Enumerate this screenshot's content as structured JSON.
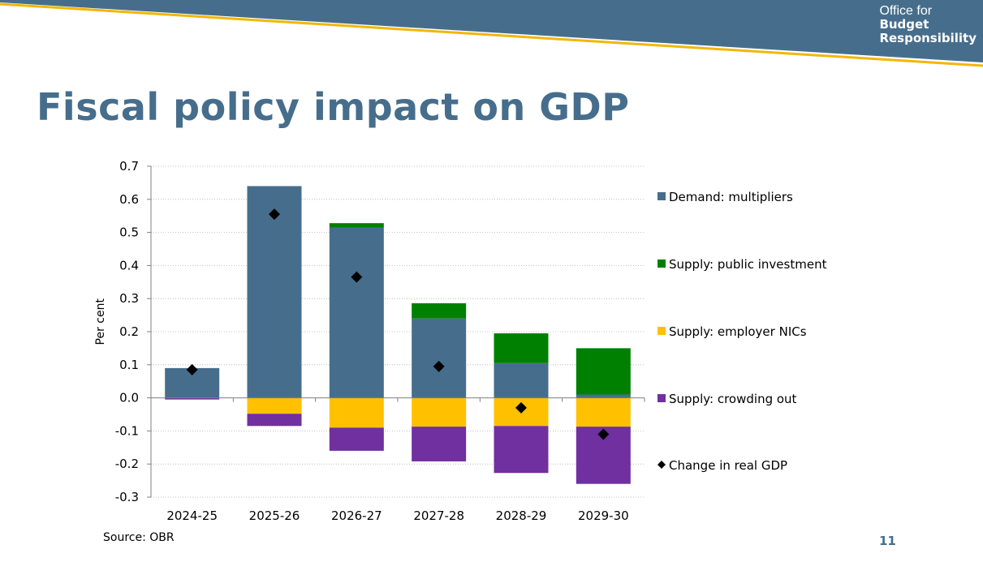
{
  "logo": {
    "line1": "Office for",
    "line2": "Budget",
    "line3": "Responsibility"
  },
  "title": "Fiscal policy impact on GDP",
  "source": "Source: OBR",
  "page_number": "11",
  "colors": {
    "banner": "#466e8c",
    "banner_stripe": "#f2b705",
    "title": "#466e8c",
    "demand_multipliers": "#466e8c",
    "public_investment": "#008000",
    "employer_nics": "#ffc000",
    "crowding_out": "#7030a0",
    "real_gdp": "#000000"
  },
  "chart_data": {
    "type": "bar",
    "stacked": true,
    "categories": [
      "2024-25",
      "2025-26",
      "2026-27",
      "2027-28",
      "2028-29",
      "2029-30"
    ],
    "series": [
      {
        "name": "Demand: multipliers",
        "key": "demand_multipliers",
        "values": [
          0.09,
          0.64,
          0.515,
          0.24,
          0.105,
          0.01
        ]
      },
      {
        "name": "Supply: public investment",
        "key": "public_investment",
        "values": [
          0.0,
          0.0,
          0.013,
          0.046,
          0.09,
          0.14
        ]
      },
      {
        "name": "Supply: employer NICs",
        "key": "employer_nics",
        "values": [
          0.0,
          -0.048,
          -0.09,
          -0.087,
          -0.085,
          -0.087
        ]
      },
      {
        "name": "Supply: crowding out",
        "key": "crowding_out",
        "values": [
          -0.005,
          -0.037,
          -0.07,
          -0.105,
          -0.142,
          -0.173
        ]
      }
    ],
    "markers": {
      "name": "Change in real GDP",
      "values": [
        0.085,
        0.555,
        0.365,
        0.095,
        -0.03,
        -0.11
      ]
    },
    "ylabel": "Per cent",
    "xlabel": "",
    "ylim": [
      -0.3,
      0.7
    ],
    "yticks": [
      "0.7",
      "0.6",
      "0.5",
      "0.4",
      "0.3",
      "0.2",
      "0.1",
      "0.0",
      "-0.1",
      "-0.2",
      "-0.3"
    ],
    "legend_labels": [
      "Demand: multipliers",
      "Supply: public investment",
      "Supply: employer NICs",
      "Supply: crowding out",
      "Change in real GDP"
    ],
    "grid": true,
    "legend_position": "right"
  }
}
